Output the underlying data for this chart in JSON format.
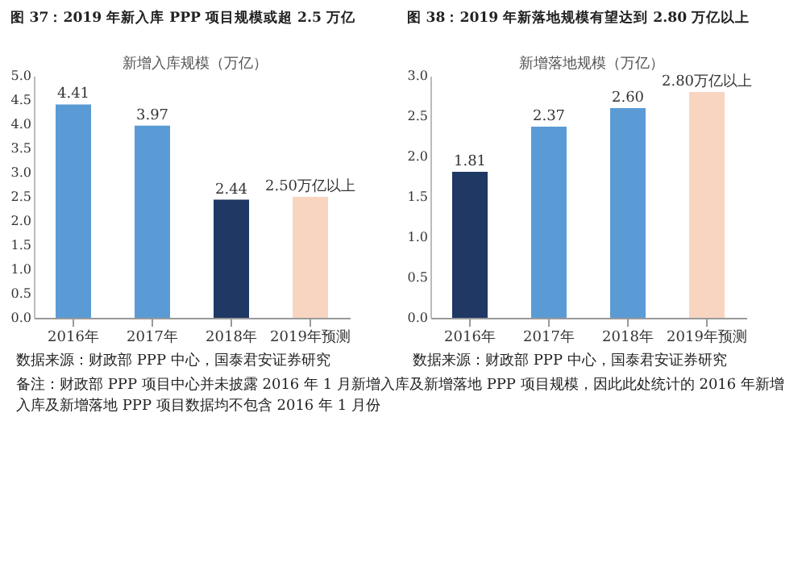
{
  "chart_data": [
    {
      "type": "bar",
      "title": "图 37：2019 年新入库 PPP 项目规模或超 2.5 万亿",
      "subtitle": "新增入库规模（万亿）",
      "categories": [
        "2016年",
        "2017年",
        "2018年",
        "2019年预测"
      ],
      "values": [
        4.41,
        3.97,
        2.44,
        2.5
      ],
      "colors": [
        "#5b9bd5",
        "#5b9bd5",
        "#1f3864",
        "#f8d5c0"
      ],
      "value_labels": [
        "4.41",
        "3.97",
        "2.44",
        "2.50万亿以上"
      ],
      "ylim": [
        0,
        5
      ],
      "yticks": [
        {
          "value": 0,
          "label": "0.0"
        },
        {
          "value": 0.5,
          "label": "0.5"
        },
        {
          "value": 1,
          "label": "1.0"
        },
        {
          "value": 1.5,
          "label": "1.5"
        },
        {
          "value": 2,
          "label": "2.0"
        },
        {
          "value": 2.5,
          "label": "2.5"
        },
        {
          "value": 3,
          "label": "3.0"
        },
        {
          "value": 3.5,
          "label": "3.5"
        },
        {
          "value": 4,
          "label": "4.0"
        },
        {
          "value": 4.5,
          "label": "4.5"
        },
        {
          "value": 5,
          "label": "5.0"
        }
      ],
      "annotations": [
        "数据来源：财政部 PPP 中心，国泰君安证券研究",
        "备注：财政部 PPP 项目中心并未披露 2016 年 1 月新增入库及新增落地 PPP 项目规模，因此此处统计的 2016 年新增入库及新增落地 PPP 项目数据均不包含 2016 年 1 月份"
      ]
    },
    {
      "type": "bar",
      "title": "图 38：2019 年新落地规模有望达到 2.80 万亿以上",
      "subtitle": "新增落地规模（万亿）",
      "categories": [
        "2016年",
        "2017年",
        "2018年",
        "2019年预测"
      ],
      "values": [
        1.81,
        2.37,
        2.6,
        2.8
      ],
      "colors": [
        "#1f3864",
        "#5b9bd5",
        "#5b9bd5",
        "#f8d5c0"
      ],
      "value_labels": [
        "1.81",
        "2.37",
        "2.60",
        "2.80万亿以上"
      ],
      "ylim": [
        0,
        3
      ],
      "yticks": [
        {
          "value": 0,
          "label": "0.0"
        },
        {
          "value": 0.5,
          "label": "0.5"
        },
        {
          "value": 1,
          "label": "1.0"
        },
        {
          "value": 1.5,
          "label": "1.5"
        },
        {
          "value": 2,
          "label": "2.0"
        },
        {
          "value": 2.5,
          "label": "2.5"
        },
        {
          "value": 3,
          "label": "3.0"
        }
      ],
      "annotations": [
        "数据来源：财政部 PPP 中心，国泰君安证券研究"
      ]
    }
  ]
}
